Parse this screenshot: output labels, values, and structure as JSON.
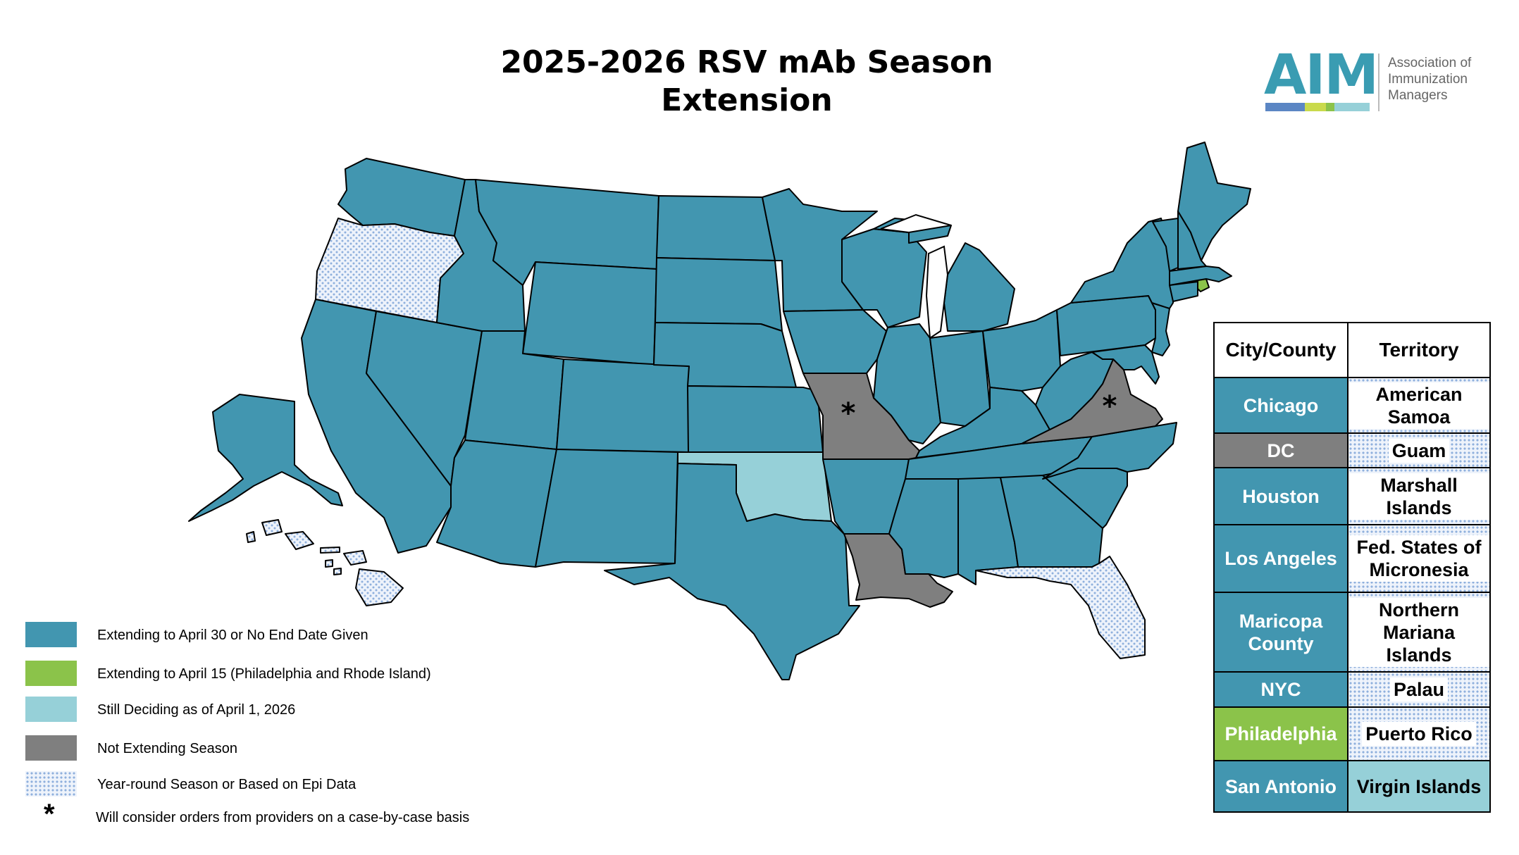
{
  "title": {
    "line1": "2025-2026 RSV mAb Season",
    "line2": "Extension"
  },
  "logo": {
    "letters": "AIM",
    "org_line1": "Association of",
    "org_line2": "Immunization",
    "org_line3": "Managers"
  },
  "colors": {
    "extending_april30": "#4296b0",
    "extending_april15": "#8bc34a",
    "still_deciding": "#96d0d8",
    "not_extending": "#7f7f7f",
    "year_round_base": "#eef3fb",
    "year_round_dot": "#8fb0dd",
    "border": "#000000"
  },
  "legend": [
    {
      "key": "extending_april30",
      "label": "Extending to April 30 or No End Date Given"
    },
    {
      "key": "extending_april15",
      "label": "Extending to April 15 (Philadelphia and Rhode Island)"
    },
    {
      "key": "still_deciding",
      "label": "Still Deciding as of  April 1, 2026"
    },
    {
      "key": "not_extending",
      "label": "Not Extending Season"
    },
    {
      "key": "year_round",
      "label": "Year-round Season or Based on Epi Data"
    }
  ],
  "legend_note": {
    "symbol": "*",
    "label": "Will consider orders from providers on a case-by-case basis"
  },
  "map_regions": {
    "not_extending": [
      "Missouri",
      "Virginia",
      "Louisiana"
    ],
    "still_deciding": [
      "Oklahoma"
    ],
    "extending_april15": [
      "Rhode Island"
    ],
    "year_round": [
      "Oregon",
      "Florida",
      "Hawaii"
    ],
    "case_by_case": [
      "Missouri",
      "Virginia"
    ]
  },
  "jurisdictions_table": {
    "header_left": "City/County",
    "header_right": "Territory",
    "rows": [
      {
        "city": "Chicago",
        "city_status": "extending_april30",
        "territory": "American Samoa",
        "territory_status": "year_round"
      },
      {
        "city": "DC",
        "city_status": "not_extending",
        "territory": "Guam",
        "territory_status": "year_round"
      },
      {
        "city": "Houston",
        "city_status": "extending_april30",
        "territory": "Marshall Islands",
        "territory_status": "year_round"
      },
      {
        "city": "Los Angeles",
        "city_status": "extending_april30",
        "territory": "Fed. States of Micronesia",
        "territory_status": "year_round"
      },
      {
        "city": "Maricopa County",
        "city_status": "extending_april30",
        "territory": "Northern Mariana Islands",
        "territory_status": "year_round"
      },
      {
        "city": "NYC",
        "city_status": "extending_april30",
        "territory": "Palau",
        "territory_status": "year_round"
      },
      {
        "city": "Philadelphia",
        "city_status": "extending_april15",
        "territory": "Puerto Rico",
        "territory_status": "year_round"
      },
      {
        "city": "San Antonio",
        "city_status": "extending_april30",
        "territory": "Virgin Islands",
        "territory_status": "still_deciding"
      }
    ]
  }
}
